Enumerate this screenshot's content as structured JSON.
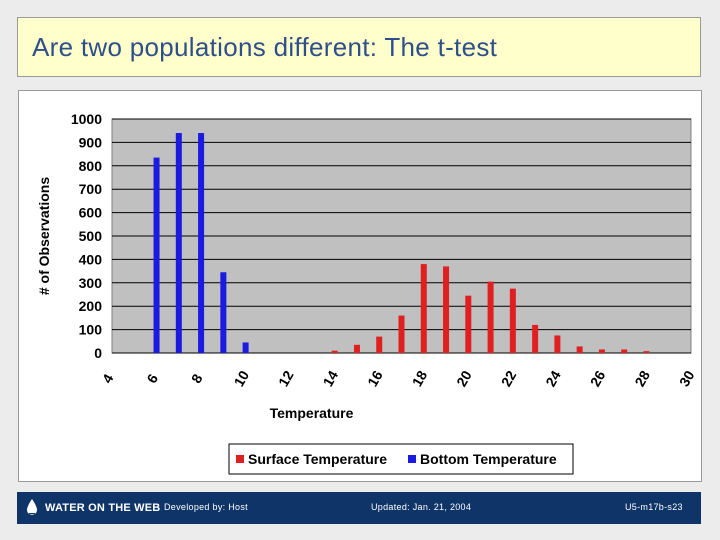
{
  "slide": {
    "title": "Are two populations different: The t-test"
  },
  "footer": {
    "logo_text": "WATER ON THE WEB",
    "developed_by": "Developed by: Host",
    "updated": "Updated: Jan. 21, 2004",
    "slide_id": "U5-m17b-s23"
  },
  "colors": {
    "surface": "#e02020",
    "bottom": "#1a1ae0",
    "plot_bg": "#c0c0c0",
    "title": "#2e4f8a",
    "footer_bg": "#0f3468"
  },
  "chart_data": {
    "type": "bar",
    "xlabel": "Temperature",
    "ylabel": "# of Observations",
    "ylim": [
      0,
      1000
    ],
    "yticks": [
      0,
      100,
      200,
      300,
      400,
      500,
      600,
      700,
      800,
      900,
      1000
    ],
    "xlim": [
      4,
      30
    ],
    "xticks": [
      4,
      6,
      8,
      10,
      12,
      14,
      16,
      18,
      20,
      22,
      24,
      26,
      28,
      30
    ],
    "grid": true,
    "legend_position": "bottom",
    "series": [
      {
        "name": "Surface Temperature",
        "x": [
          14,
          15,
          16,
          17,
          18,
          19,
          20,
          21,
          22,
          23,
          24,
          25,
          26,
          27,
          28
        ],
        "values": [
          10,
          35,
          70,
          160,
          380,
          370,
          245,
          305,
          275,
          120,
          75,
          28,
          15,
          15,
          8
        ]
      },
      {
        "name": "Bottom Temperature",
        "x": [
          6,
          7,
          8,
          9,
          10
        ],
        "values": [
          835,
          940,
          940,
          345,
          45
        ]
      }
    ]
  }
}
